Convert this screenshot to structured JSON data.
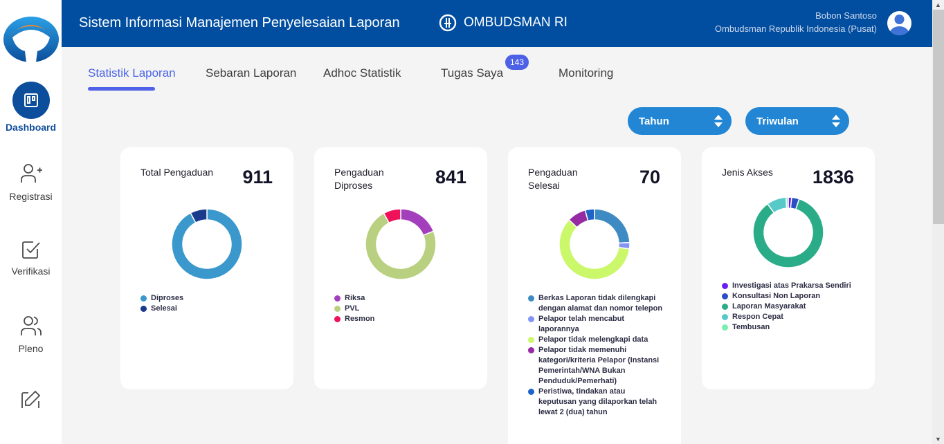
{
  "header": {
    "app_title": "Sistem Informasi Manajemen Penyelesaian Laporan",
    "brand_name": "OMBUDSMAN RI",
    "user_name": "Bobon Santoso",
    "user_org": "Ombudsman Republik Indonesia (Pusat)"
  },
  "sidebar": {
    "items": [
      {
        "label": "Dashboard",
        "icon": "dashboard-icon",
        "active": true
      },
      {
        "label": "Registrasi",
        "icon": "user-plus-icon"
      },
      {
        "label": "Verifikasi",
        "icon": "check-square-icon"
      },
      {
        "label": "Pleno",
        "icon": "users-icon"
      },
      {
        "label": "",
        "icon": "edit-icon"
      }
    ]
  },
  "tabs": [
    {
      "label": "Statistik Laporan",
      "active": true
    },
    {
      "label": "Sebaran Laporan"
    },
    {
      "label": "Adhoc Statistik"
    },
    {
      "label": "Tugas Saya",
      "badge": "143"
    },
    {
      "label": "Monitoring"
    }
  ],
  "filters": {
    "year": {
      "selected": "Tahun"
    },
    "quarter": {
      "selected": "Triwulan"
    }
  },
  "colors": {
    "header_bg": "#014ea0",
    "accent": "#4f61e8",
    "select_bg": "#2286d4"
  },
  "chart_data": [
    {
      "type": "pie",
      "title": "Total Pengaduan",
      "total": "911",
      "categories": [
        "Diproses",
        "Selesai"
      ],
      "values": [
        841,
        70
      ],
      "colors": [
        "#3a98cc",
        "#1a3b8c"
      ]
    },
    {
      "type": "pie",
      "title": "Pengaduan Diproses",
      "total": "841",
      "categories": [
        "Riksa",
        "PVL",
        "Resmon"
      ],
      "values": [
        160,
        614,
        67
      ],
      "colors": [
        "#a33fbd",
        "#b8d080",
        "#f0115b"
      ]
    },
    {
      "type": "pie",
      "title": "Pengaduan Selesai",
      "total": "70",
      "categories": [
        "Berkas Laporan tidak dilengkapi dengan alamat dan nomor telepon",
        "Pelapor telah mencabut laporannya",
        "Pelapor tidak melengkapi data",
        "Pelapor tidak memenuhi kategori/kriteria Pelapor (Instansi Pemerintah/WNA Bukan Penduduk/Pemerhati)",
        "Peristiwa, tindakan atau keputusan yang dilaporkan telah lewat 2 (dua) tahun"
      ],
      "values": [
        17,
        2,
        42,
        6,
        3
      ],
      "colors": [
        "#3e8bc4",
        "#8494f5",
        "#cbf76a",
        "#952aa3",
        "#1e63c8"
      ]
    },
    {
      "type": "pie",
      "title": "Jenis Akses",
      "total": "1836",
      "categories": [
        "Investigasi atas Prakarsa Sendiri",
        "Konsultasi Non Laporan",
        "Laporan Masyarakat",
        "Respon Cepat",
        "Tembusan"
      ],
      "values": [
        28,
        64,
        1560,
        165,
        19
      ],
      "colors": [
        "#6a1ff0",
        "#2a4fc4",
        "#2aac88",
        "#57c9c9",
        "#7dedb0"
      ]
    }
  ]
}
